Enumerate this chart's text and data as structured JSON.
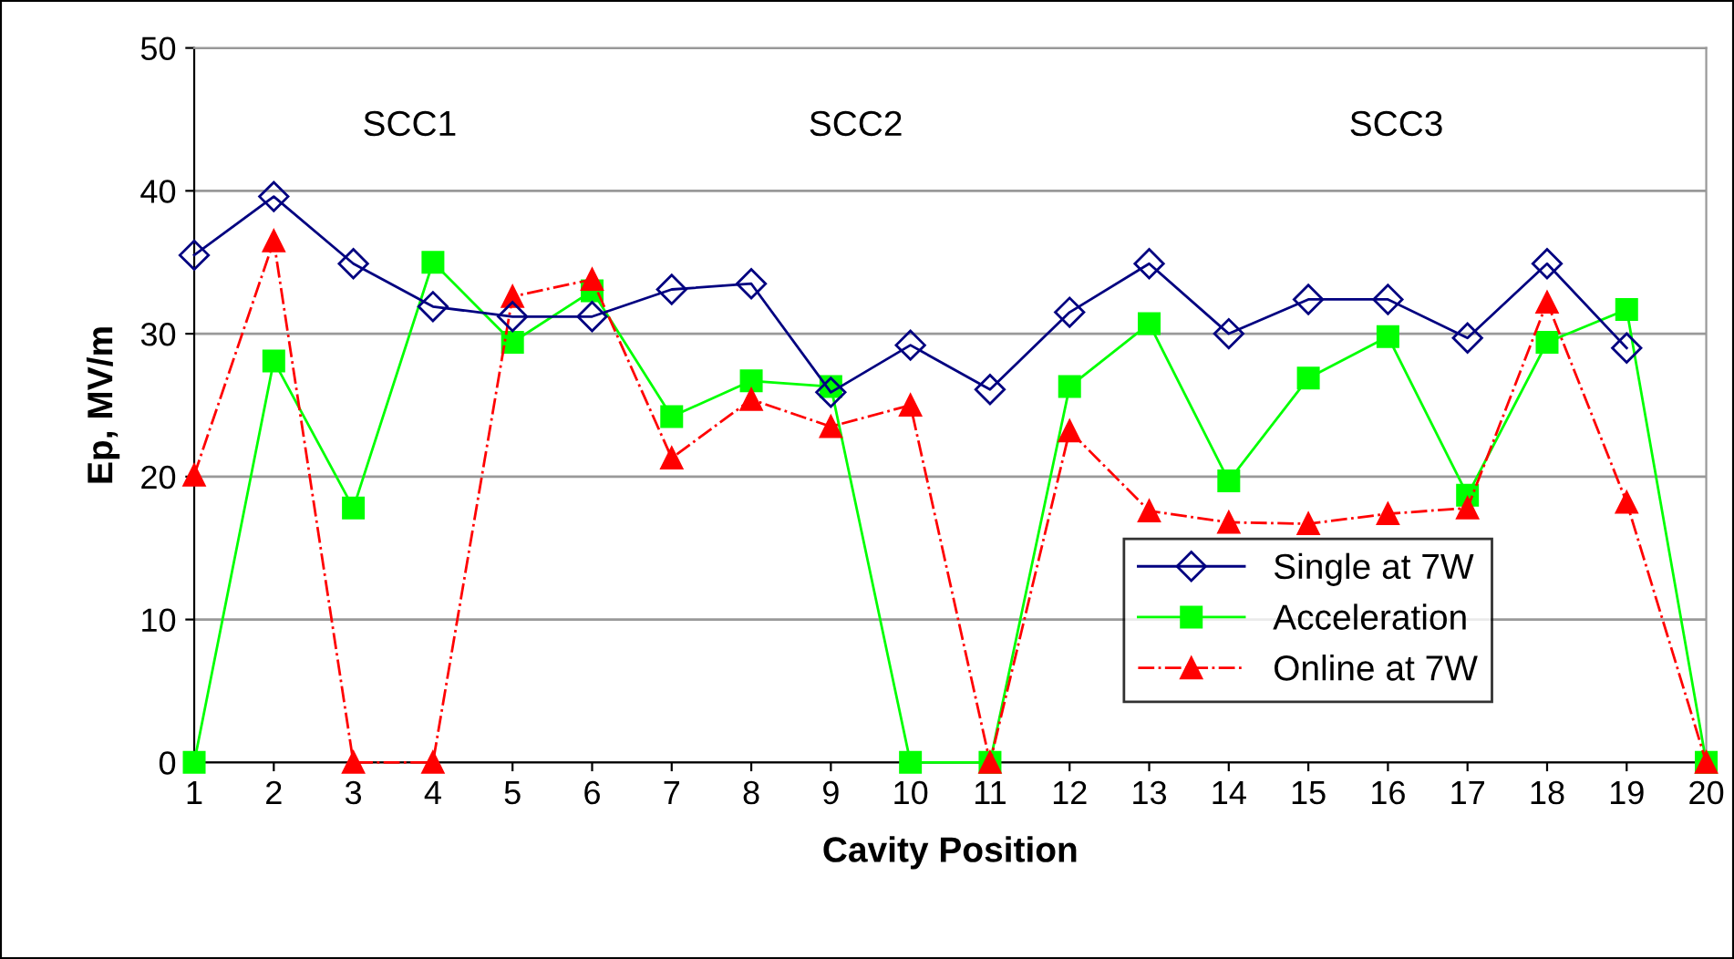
{
  "chart_data": {
    "type": "line",
    "xlabel": "Cavity Position",
    "ylabel": "Ep, MV/m",
    "x": [
      1,
      2,
      3,
      4,
      5,
      6,
      7,
      8,
      9,
      10,
      11,
      12,
      13,
      14,
      15,
      16,
      17,
      18,
      19,
      20
    ],
    "xlim": [
      1,
      20
    ],
    "xticks": [
      1,
      2,
      3,
      4,
      5,
      6,
      7,
      8,
      9,
      10,
      11,
      12,
      13,
      14,
      15,
      16,
      17,
      18,
      19,
      20
    ],
    "ylim": [
      0,
      50
    ],
    "yticks": [
      0,
      10,
      20,
      30,
      40,
      50
    ],
    "grid": "y",
    "legend": "bottom right",
    "series": [
      {
        "name": "Single at 7W",
        "color": "#000080",
        "marker": "diamond",
        "line_style": "solid",
        "values": [
          35.5,
          39.6,
          34.9,
          31.9,
          31.2,
          31.2,
          33.1,
          33.5,
          25.9,
          29.2,
          26.1,
          31.5,
          34.9,
          30.0,
          32.4,
          32.4,
          29.7,
          34.9,
          29.0,
          null
        ]
      },
      {
        "name": "Acceleration",
        "color": "#00ff00",
        "marker": "square",
        "line_style": "solid",
        "values": [
          0,
          28.1,
          17.8,
          35.0,
          29.4,
          33.0,
          24.2,
          26.7,
          26.3,
          0,
          0,
          26.3,
          30.7,
          19.7,
          26.9,
          29.8,
          18.7,
          29.4,
          31.7,
          0
        ]
      },
      {
        "name": "Online at 7W",
        "color": "#ff0000",
        "marker": "triangle",
        "line_style": "dashdot",
        "values": [
          20.1,
          36.5,
          0,
          0,
          32.6,
          33.8,
          21.3,
          25.4,
          23.5,
          25.0,
          0,
          23.2,
          17.6,
          16.8,
          16.7,
          17.4,
          17.8,
          32.2,
          18.2,
          0
        ]
      }
    ],
    "annotations": [
      "SCC1",
      "SCC2",
      "SCC3"
    ]
  }
}
